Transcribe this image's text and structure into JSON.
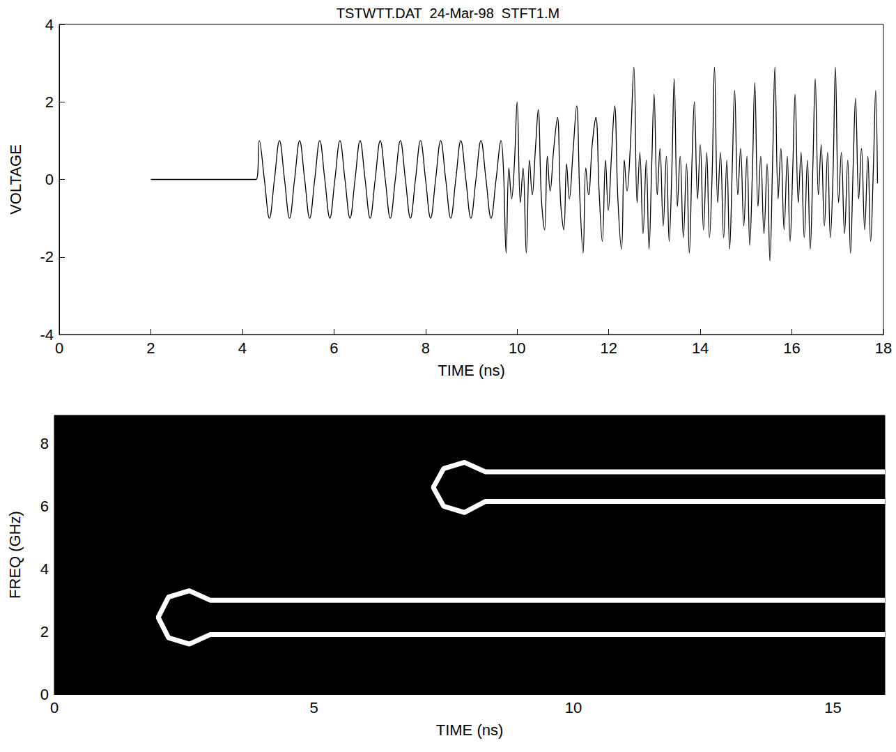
{
  "chart_data": [
    {
      "type": "line",
      "title": "TSTWTT.DAT  24-Mar-98  STFT1.M",
      "x_label": "TIME (ns)",
      "y_label": "VOLTAGE",
      "color": "#000000",
      "grid": false,
      "xlim": [
        0,
        18
      ],
      "xticks": [
        0,
        2,
        4,
        6,
        8,
        10,
        12,
        14,
        16,
        18
      ],
      "ylim": [
        -4,
        4
      ],
      "yticks": [
        -4,
        -2,
        0,
        2,
        4
      ],
      "x": [
        2.0,
        4.3,
        4.37,
        4.48,
        4.59,
        4.7,
        4.81,
        4.92,
        5.03,
        5.14,
        5.25,
        5.36,
        5.47,
        5.58,
        5.69,
        5.8,
        5.91,
        6.02,
        6.13,
        6.24,
        6.35,
        6.46,
        6.57,
        6.68,
        6.79,
        6.9,
        7.01,
        7.12,
        7.23,
        7.34,
        7.45,
        7.56,
        7.67,
        7.78,
        7.89,
        8.0,
        8.11,
        8.22,
        8.33,
        8.44,
        8.55,
        8.66,
        8.77,
        8.88,
        8.99,
        9.1,
        9.21,
        9.32,
        9.43,
        9.54,
        9.65,
        9.7,
        9.76,
        9.82,
        9.88,
        9.94,
        10.0,
        10.07,
        10.13,
        10.2,
        10.27,
        10.33,
        10.4,
        10.46,
        10.53,
        10.6,
        10.66,
        10.72,
        10.8,
        10.88,
        10.95,
        11.02,
        11.08,
        11.14,
        11.22,
        11.3,
        11.37,
        11.44,
        11.5,
        11.56,
        11.64,
        11.72,
        11.79,
        11.86,
        11.93,
        11.99,
        12.06,
        12.13,
        12.2,
        12.28,
        12.34,
        12.4,
        12.47,
        12.55,
        12.62,
        12.68,
        12.75,
        12.82,
        12.88,
        12.94,
        12.99,
        13.06,
        13.12,
        13.19,
        13.26,
        13.32,
        13.38,
        13.43,
        13.5,
        13.56,
        13.63,
        13.7,
        13.76,
        13.82,
        13.87,
        13.94,
        14.0,
        14.07,
        14.14,
        14.2,
        14.26,
        14.31,
        14.38,
        14.44,
        14.51,
        14.58,
        14.64,
        14.7,
        14.75,
        14.82,
        14.88,
        14.95,
        15.02,
        15.08,
        15.14,
        15.19,
        15.26,
        15.32,
        15.39,
        15.46,
        15.52,
        15.58,
        15.63,
        15.7,
        15.76,
        15.83,
        15.9,
        15.96,
        16.02,
        16.07,
        16.14,
        16.2,
        16.27,
        16.34,
        16.4,
        16.46,
        16.51,
        16.58,
        16.64,
        16.71,
        16.78,
        16.84,
        16.9,
        16.95,
        17.02,
        17.08,
        17.15,
        17.22,
        17.28,
        17.34,
        17.39,
        17.46,
        17.52,
        17.59,
        17.66,
        17.72,
        17.78,
        17.83,
        17.87
      ],
      "values": [
        0,
        0,
        1,
        0,
        -1,
        0,
        1,
        0,
        -1,
        0,
        1,
        0,
        -1,
        0,
        1,
        0,
        -1,
        0,
        1,
        0,
        -1,
        0,
        1,
        0,
        -1,
        0,
        1,
        0,
        -1,
        0,
        1,
        0,
        -1,
        0,
        1,
        0,
        -1,
        0,
        1,
        0,
        -1,
        0,
        1,
        0,
        -1,
        0,
        1,
        0,
        -1,
        0,
        1,
        0.3,
        -1.9,
        0.3,
        -0.5,
        0.4,
        2.0,
        -0.6,
        0.3,
        -1.9,
        0.5,
        -0.4,
        0.8,
        1.8,
        -0.5,
        -1.3,
        0.6,
        -0.3,
        0.8,
        1.6,
        -0.6,
        -1.3,
        0.4,
        -0.5,
        0.7,
        1.9,
        -0.5,
        -1.9,
        0.3,
        -0.4,
        0.9,
        1.6,
        -0.3,
        -1.6,
        0.5,
        -0.8,
        0.6,
        1.9,
        -0.5,
        -1.8,
        0.5,
        -0.3,
        0.8,
        2.9,
        -0.6,
        0.7,
        -1.4,
        0.5,
        -1.8,
        0.4,
        2.2,
        -0.4,
        0.8,
        -1.2,
        0.6,
        -1.6,
        0.3,
        2.6,
        -0.7,
        0.6,
        -1.5,
        0.4,
        -1.9,
        0.5,
        2.0,
        -0.5,
        0.9,
        -1.3,
        0.7,
        -1.5,
        0.2,
        2.9,
        -0.6,
        0.7,
        -1.5,
        0.5,
        -1.8,
        0.4,
        2.3,
        -0.4,
        0.8,
        -1.2,
        0.6,
        -1.7,
        0.3,
        2.5,
        -0.7,
        0.6,
        -1.4,
        0.4,
        -2.1,
        0.5,
        2.9,
        -0.5,
        0.8,
        -1.3,
        0.6,
        -1.6,
        0.3,
        2.2,
        -0.6,
        0.7,
        -1.5,
        0.5,
        -1.8,
        0.4,
        2.6,
        -0.4,
        0.9,
        -1.2,
        0.7,
        -1.5,
        0.2,
        2.9,
        -0.6,
        0.7,
        -1.4,
        0.5,
        -1.9,
        0.4,
        2.1,
        -0.5,
        0.8,
        -1.3,
        0.6,
        -1.6,
        0.3,
        2.3,
        -0.1
      ]
    },
    {
      "type": "line",
      "x_label": "TIME (ns)",
      "y_label": "FREQ (GHz)",
      "grid": false,
      "xlim": [
        0,
        16
      ],
      "xticks": [
        0,
        5,
        10,
        15
      ],
      "ylim": [
        0,
        8.9
      ],
      "yticks": [
        0,
        2,
        4,
        6,
        8
      ],
      "series": [
        {
          "color": "#ffffff",
          "x": [
            16,
            3.0,
            2.6,
            2.2,
            2.0,
            2.2,
            2.6,
            3.0,
            16
          ],
          "values": [
            3.0,
            3.0,
            3.3,
            3.1,
            2.45,
            1.8,
            1.6,
            1.9,
            1.9
          ]
        },
        {
          "color": "#ffffff",
          "x": [
            16,
            8.3,
            7.9,
            7.5,
            7.3,
            7.5,
            7.9,
            8.3,
            16
          ],
          "values": [
            7.1,
            7.1,
            7.4,
            7.2,
            6.6,
            6.0,
            5.8,
            6.15,
            6.15
          ]
        }
      ]
    }
  ]
}
